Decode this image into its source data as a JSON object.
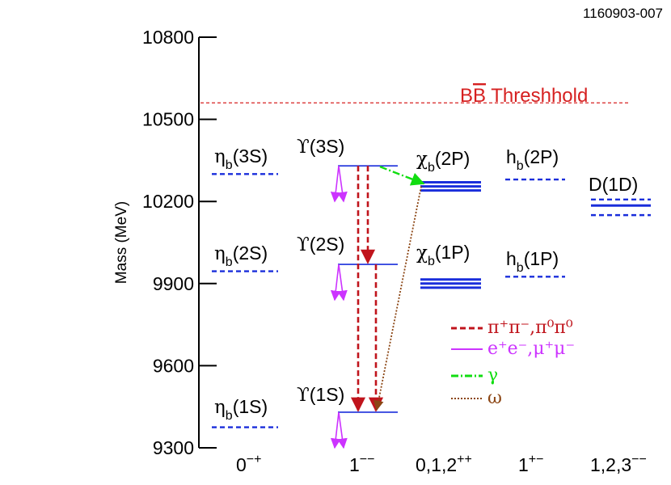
{
  "figure_id": "1160903-007",
  "y_axis": {
    "label": "Mass (MeV)",
    "min": 9300,
    "max": 10800,
    "ticks": [
      {
        "value": 10800,
        "label": "10800"
      },
      {
        "value": 10500,
        "label": "10500"
      },
      {
        "value": 10200,
        "label": "10200"
      },
      {
        "value": 9900,
        "label": "9900"
      },
      {
        "value": 9600,
        "label": "9600"
      },
      {
        "value": 9300,
        "label": "9300"
      }
    ]
  },
  "threshold": {
    "mass": 10560,
    "label_base": "B",
    "label_bar": "B",
    "label_rest": " Threshhold",
    "color": "#d62020"
  },
  "columns": [
    {
      "label": "0",
      "sup": "−+"
    },
    {
      "label": "1",
      "sup": "−−"
    },
    {
      "label": "0,1,2",
      "sup": "++"
    },
    {
      "label": "1",
      "sup": "+−"
    },
    {
      "label": "1,2,3",
      "sup": "−−"
    }
  ],
  "states": {
    "etab3S": {
      "sym": "η",
      "sub": "b",
      "arg": "(3S)",
      "mass": 10300
    },
    "etab2S": {
      "sym": "η",
      "sub": "b",
      "arg": "(2S)",
      "mass": 9945
    },
    "etab1S": {
      "sym": "η",
      "sub": "b",
      "arg": "(1S)",
      "mass": 9375
    },
    "ups3S": {
      "sym": "ϒ",
      "arg": "(3S)",
      "mass": 10330
    },
    "ups2S": {
      "sym": "ϒ",
      "arg": "(2S)",
      "mass": 9970
    },
    "ups1S": {
      "sym": "ϒ",
      "arg": "(1S)",
      "mass": 9430
    },
    "chib2P": {
      "sym": "χ",
      "sub": "b",
      "arg": "(2P)",
      "masses": [
        10270,
        10255,
        10240
      ]
    },
    "chib1P": {
      "sym": "χ",
      "sub": "b",
      "arg": "(1P)",
      "masses": [
        9915,
        9900,
        9885
      ]
    },
    "hb2P": {
      "sym": "h",
      "sub": "b",
      "arg": "(2P)",
      "mass": 10280
    },
    "hb1P": {
      "sym": "h",
      "sub": "b",
      "arg": "(1P)",
      "mass": 9925
    },
    "d1D": {
      "name": "D(1D)",
      "masses": [
        10207,
        10185,
        10150
      ]
    }
  },
  "legend": [
    {
      "key": "pipi",
      "text": "π⁺π⁻,π⁰π⁰",
      "color": "#c0141c"
    },
    {
      "key": "ee",
      "text": "e⁺e⁻,μ⁺μ⁻",
      "color": "#cc33ff"
    },
    {
      "key": "gamma",
      "text": "γ",
      "color": "#11dd11"
    },
    {
      "key": "omega",
      "text": "ω",
      "color": "#8b4513"
    }
  ],
  "colors": {
    "level": "#1a2edb",
    "pipi": "#c0141c",
    "ee": "#cc33ff",
    "gamma": "#11dd11",
    "omega": "#8b4513"
  }
}
